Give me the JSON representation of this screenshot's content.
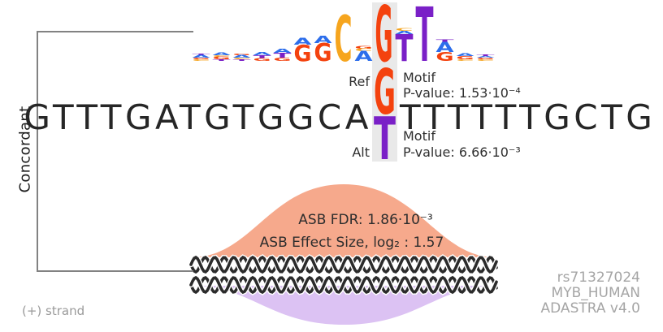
{
  "figure": {
    "group_label": "Concordant",
    "strand_label": "(+) strand",
    "watermark": {
      "rsid": "rs71327024",
      "tf_name": "MYB_HUMAN",
      "version": "ADASTRA v4.0"
    }
  },
  "sequence": {
    "before_snp": "GTTTGATGTGGCA",
    "after_snp": "TTTTTTGCTG"
  },
  "snp": {
    "ref_label": "Ref",
    "alt_label": "Alt",
    "ref_base": "G",
    "alt_base": "T",
    "ref_motif_label": "Motif",
    "ref_pvalue_text": "P-value: 1.53·10⁻⁴",
    "alt_motif_label": "Motif",
    "alt_pvalue_text": "P-value: 6.66·10⁻³",
    "ref_color": "#f4420e",
    "alt_color": "#7a20c7",
    "highlight_color": "#e9e9e9"
  },
  "asb": {
    "fdr_text": "ASB FDR: 1.86·10⁻³",
    "effect_size_text": "ASB Effect Size, log₂ : 1.57",
    "ref_hump_color": "#f6a98c",
    "alt_hump_color": "#dcc2f3",
    "helix_color": "#2b2b2b"
  },
  "motif_logo": {
    "letter_colors": {
      "A": "#2d6eeb",
      "C": "#f6a51e",
      "G": "#f4420e",
      "T": "#7a20c7"
    },
    "highlight_index": 9,
    "positions": [
      [
        [
          "T",
          2
        ],
        [
          "A",
          3
        ],
        [
          "G",
          2
        ],
        [
          "C",
          2
        ]
      ],
      [
        [
          "A",
          3
        ],
        [
          "C",
          2
        ],
        [
          "G",
          3
        ],
        [
          "T",
          2
        ]
      ],
      [
        [
          "G",
          2
        ],
        [
          "A",
          3
        ],
        [
          "C",
          2
        ],
        [
          "T",
          2
        ]
      ],
      [
        [
          "A",
          4
        ],
        [
          "T",
          4
        ],
        [
          "G",
          3
        ]
      ],
      [
        [
          "A",
          5
        ],
        [
          "T",
          6
        ],
        [
          "G",
          4
        ]
      ],
      [
        [
          "A",
          8
        ],
        [
          "G",
          20
        ]
      ],
      [
        [
          "A",
          9
        ],
        [
          "G",
          22
        ]
      ],
      [
        [
          "C",
          56
        ]
      ],
      [
        [
          "G",
          3
        ],
        [
          "C",
          3
        ],
        [
          "A",
          12
        ]
      ],
      [
        [
          "G",
          68
        ]
      ],
      [
        [
          "C",
          3
        ],
        [
          "A",
          4
        ],
        [
          "T",
          33
        ]
      ],
      [
        [
          "T",
          66
        ]
      ],
      [
        [
          "T",
          3
        ],
        [
          "A",
          12
        ],
        [
          "G",
          11
        ]
      ],
      [
        [
          "A",
          3
        ],
        [
          "G",
          4
        ],
        [
          "C",
          2
        ]
      ],
      [
        [
          "T",
          2
        ],
        [
          "A",
          2
        ],
        [
          "G",
          2
        ],
        [
          "C",
          2
        ]
      ]
    ]
  }
}
